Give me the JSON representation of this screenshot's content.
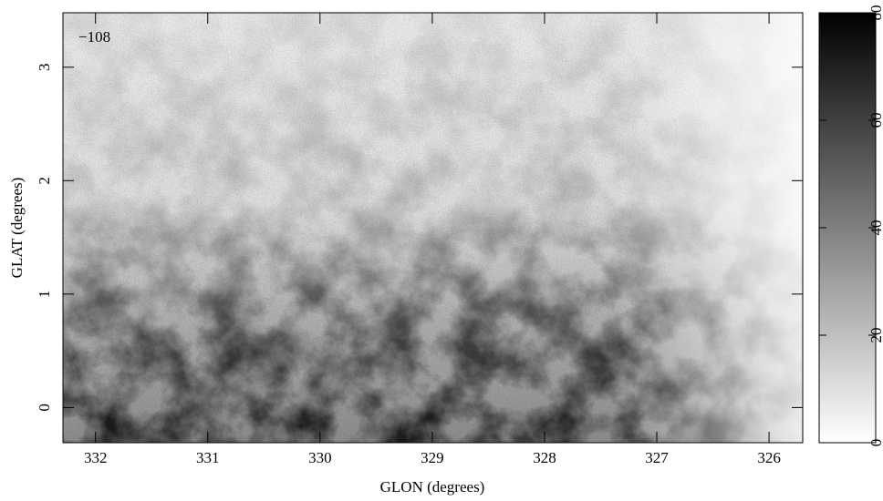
{
  "chart_data": {
    "type": "image",
    "annotation": "−108",
    "x_label": "GLON (degrees)",
    "y_label": "GLAT (degrees)",
    "xlim": [
      332.29,
      325.7
    ],
    "xticks": [
      332,
      331,
      330,
      329,
      328,
      327,
      326
    ],
    "ylim": [
      -0.31,
      3.48
    ],
    "yticks": [
      0,
      1,
      2,
      3
    ],
    "colorbar": {
      "lim": [
        0,
        80
      ],
      "ticks": [
        0,
        20,
        40,
        60,
        80
      ]
    }
  }
}
